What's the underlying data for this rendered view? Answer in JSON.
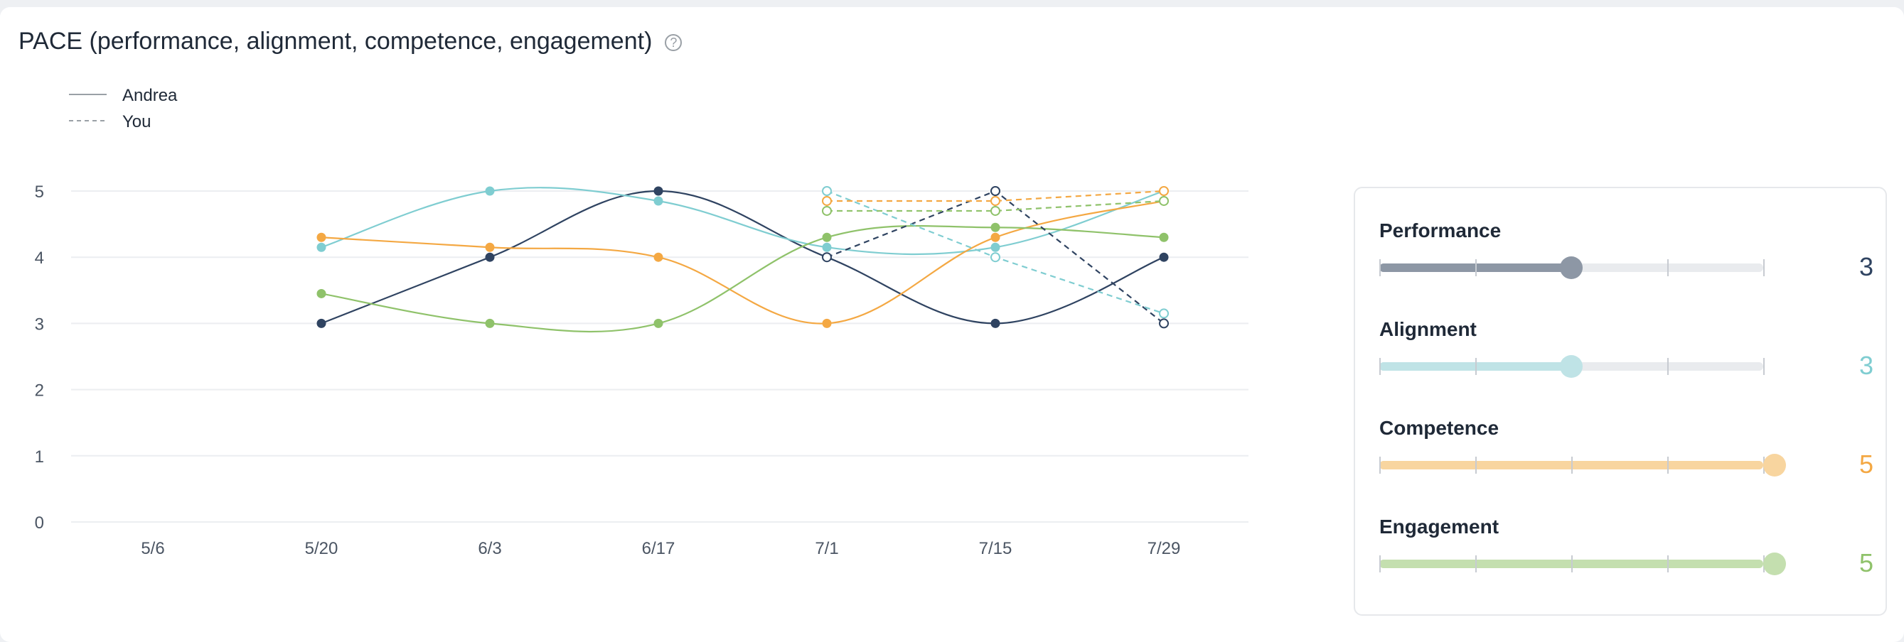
{
  "page": {
    "title": "PACE (performance, alignment, competence, engagement)",
    "help_icon": "question-circle-icon"
  },
  "colors": {
    "performance": "#2f4361",
    "alignment": "#7fcdd1",
    "competence": "#f4a843",
    "engagement": "#8fc26a",
    "grid": "#eceef1",
    "axis_text": "#4b5563"
  },
  "chart_data": {
    "type": "line",
    "title": "",
    "x": [
      "5/6",
      "5/20",
      "6/3",
      "6/17",
      "7/1",
      "7/15",
      "7/29"
    ],
    "ylim": [
      0,
      5
    ],
    "y_ticks": [
      0,
      1,
      2,
      3,
      4,
      5
    ],
    "grid": true,
    "legend": {
      "placement": "top-left",
      "entries": [
        {
          "label": "Andrea",
          "style": "solid"
        },
        {
          "label": "You",
          "style": "dashed"
        }
      ]
    },
    "series": [
      {
        "key": "performance",
        "person": "Andrea",
        "style": "solid",
        "points": [
          [
            "5/20",
            3
          ],
          [
            "6/3",
            4
          ],
          [
            "6/17",
            5
          ],
          [
            "7/1",
            4
          ],
          [
            "7/15",
            3
          ],
          [
            "7/29",
            4
          ]
        ]
      },
      {
        "key": "alignment",
        "person": "Andrea",
        "style": "solid",
        "points": [
          [
            "5/20",
            4.15
          ],
          [
            "6/3",
            5
          ],
          [
            "6/17",
            4.85
          ],
          [
            "7/1",
            4.15
          ],
          [
            "7/15",
            4.15
          ],
          [
            "7/29",
            5
          ]
        ]
      },
      {
        "key": "competence",
        "person": "Andrea",
        "style": "solid",
        "points": [
          [
            "5/20",
            4.3
          ],
          [
            "6/3",
            4.15
          ],
          [
            "6/17",
            4
          ],
          [
            "7/1",
            3
          ],
          [
            "7/15",
            4.3
          ],
          [
            "7/29",
            4.85
          ]
        ]
      },
      {
        "key": "engagement",
        "person": "Andrea",
        "style": "solid",
        "points": [
          [
            "5/20",
            3.45
          ],
          [
            "6/3",
            3
          ],
          [
            "6/17",
            3
          ],
          [
            "7/1",
            4.3
          ],
          [
            "7/15",
            4.45
          ],
          [
            "7/29",
            4.3
          ]
        ]
      },
      {
        "key": "performance",
        "person": "You",
        "style": "dashed",
        "points": [
          [
            "7/1",
            4
          ],
          [
            "7/15",
            5
          ],
          [
            "7/29",
            3
          ]
        ]
      },
      {
        "key": "alignment",
        "person": "You",
        "style": "dashed",
        "points": [
          [
            "7/1",
            5
          ],
          [
            "7/15",
            4
          ],
          [
            "7/29",
            3.15
          ]
        ]
      },
      {
        "key": "competence",
        "person": "You",
        "style": "dashed",
        "points": [
          [
            "7/1",
            4.85
          ],
          [
            "7/15",
            4.85
          ],
          [
            "7/29",
            5
          ]
        ]
      },
      {
        "key": "engagement",
        "person": "You",
        "style": "dashed",
        "points": [
          [
            "7/1",
            4.7
          ],
          [
            "7/15",
            4.7
          ],
          [
            "7/29",
            4.85
          ]
        ]
      }
    ]
  },
  "sliders": [
    {
      "key": "performance",
      "label": "Performance",
      "value": "3",
      "level": 3,
      "max": 5,
      "fill_color": "#8d97a5",
      "knob_color": "#8d97a5",
      "value_color": "#2f4361"
    },
    {
      "key": "alignment",
      "label": "Alignment",
      "value": "3",
      "level": 3,
      "max": 5,
      "fill_color": "#bfe3e6",
      "knob_color": "#bfe3e6",
      "value_color": "#7fcdd1"
    },
    {
      "key": "competence",
      "label": "Competence",
      "value": "5",
      "level": 5,
      "max": 5,
      "fill_color": "#f8d59f",
      "knob_color": "#f8d59f",
      "value_color": "#f4a843"
    },
    {
      "key": "engagement",
      "label": "Engagement",
      "value": "5",
      "level": 5,
      "max": 5,
      "fill_color": "#c4dfaf",
      "knob_color": "#c4dfaf",
      "value_color": "#8fc26a"
    }
  ]
}
